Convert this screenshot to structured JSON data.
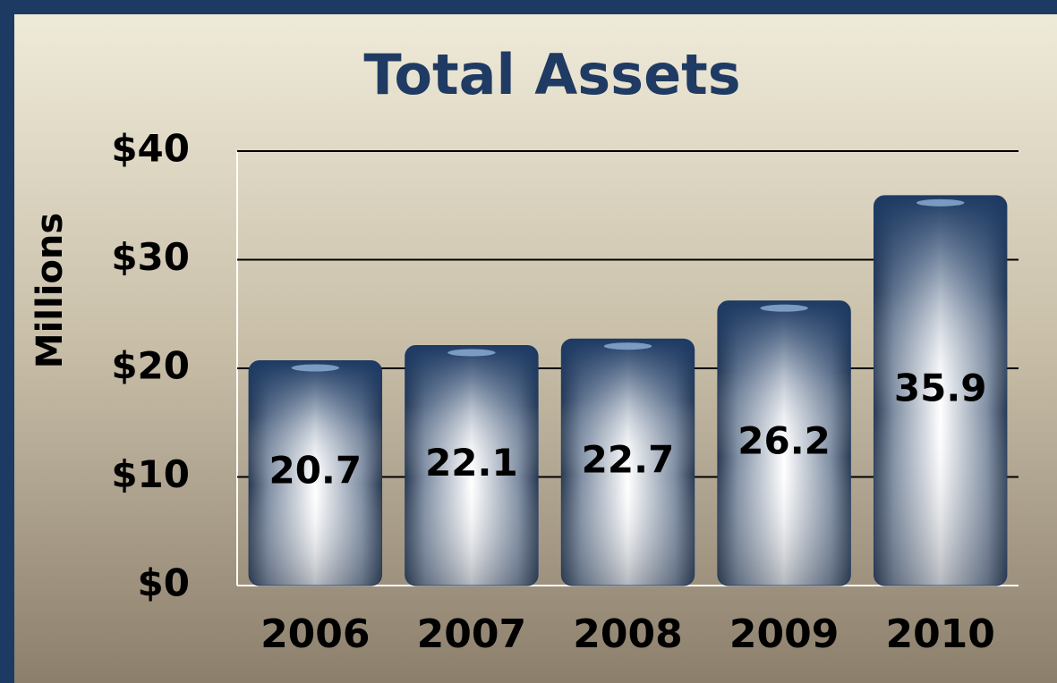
{
  "chart_data": {
    "type": "bar",
    "title": "Total Assets",
    "y_label": "Millions",
    "categories": [
      "2006",
      "2007",
      "2008",
      "2009",
      "2010"
    ],
    "values": [
      20.7,
      22.1,
      22.7,
      26.2,
      35.9
    ],
    "color": "#1d3a63",
    "ylim": [
      0,
      40
    ],
    "yticks": [
      {
        "value": 0,
        "label": "$0"
      },
      {
        "value": 10,
        "label": "$10"
      },
      {
        "value": 20,
        "label": "$20"
      },
      {
        "value": 30,
        "label": "$30"
      },
      {
        "value": 40,
        "label": "$40"
      }
    ],
    "grid": true
  }
}
